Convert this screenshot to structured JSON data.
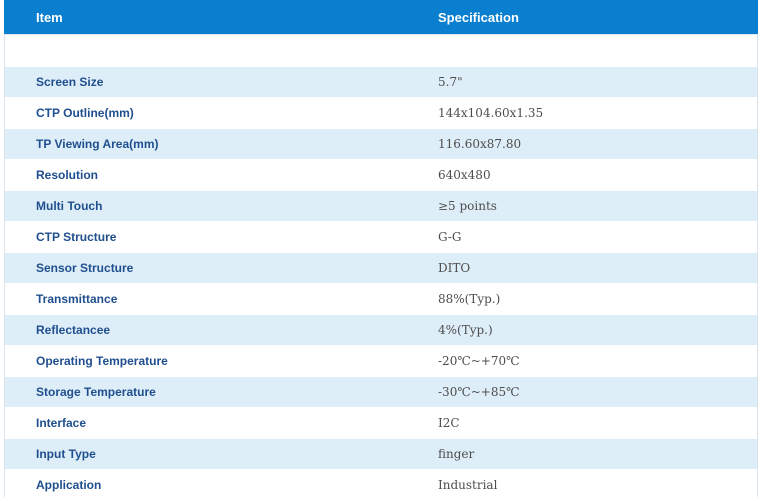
{
  "table": {
    "headers": {
      "item": "Item",
      "specification": "Specification"
    },
    "rows": [
      {
        "item": "Screen Size",
        "spec": "5.7\""
      },
      {
        "item": "CTP Outline(mm)",
        "spec": "144x104.60x1.35"
      },
      {
        "item": "TP Viewing Area(mm)",
        "spec": "116.60x87.80"
      },
      {
        "item": "Resolution",
        "spec": "640x480"
      },
      {
        "item": "Multi Touch",
        "spec": "≥5 points"
      },
      {
        "item": "CTP Structure",
        "spec": "G-G"
      },
      {
        "item": "Sensor Structure",
        "spec": "DITO"
      },
      {
        "item": "Transmittance",
        "spec": "88%(Typ.)"
      },
      {
        "item": "Reflectancee",
        "spec": "4%(Typ.)"
      },
      {
        "item": "Operating Temperature",
        "spec": "-20℃~+70℃"
      },
      {
        "item": "Storage Temperature",
        "spec": "-30℃~+85℃"
      },
      {
        "item": "Interface",
        "spec": "I2C"
      },
      {
        "item": "Input Type",
        "spec": "finger"
      },
      {
        "item": "Application",
        "spec": "Industrial"
      }
    ]
  },
  "colors": {
    "header_bg": "#0a7fcf",
    "header_text": "#ffffff",
    "stripe_bg": "#deeef9",
    "item_text": "#1f4f8e",
    "spec_text": "#4d4d4d"
  }
}
